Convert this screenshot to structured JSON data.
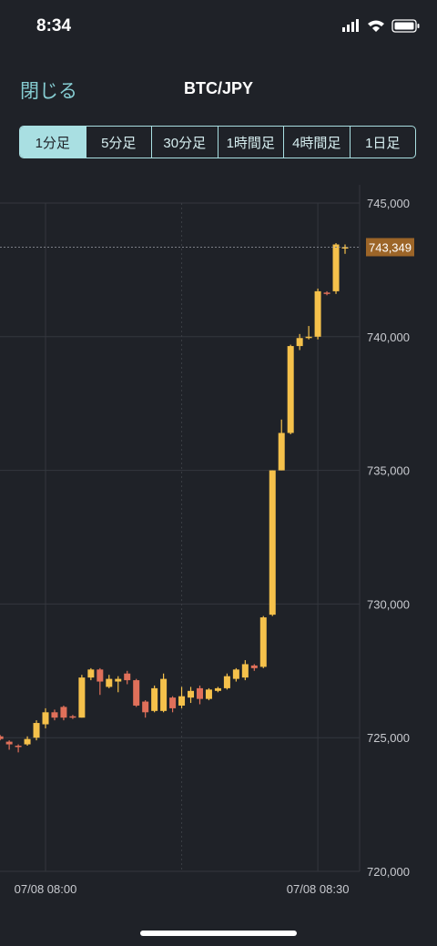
{
  "status_bar": {
    "time": "8:34"
  },
  "header": {
    "close": "閉じる",
    "title": "BTC/JPY"
  },
  "tabs": [
    "1分足",
    "5分足",
    "30分足",
    "1時間足",
    "4時間足",
    "1日足"
  ],
  "chart_data": {
    "type": "candlestick",
    "categories": [
      null,
      null,
      null,
      null,
      null,
      "07/08 08:00",
      null,
      null,
      null,
      null,
      null,
      null,
      null,
      null,
      null,
      null,
      null,
      null,
      null,
      null,
      null,
      null,
      null,
      null,
      null,
      null,
      null,
      null,
      null,
      null,
      null,
      null,
      null,
      null,
      null,
      "07/08 08:30",
      null,
      null,
      null
    ],
    "open": [
      725050,
      724850,
      724700,
      724750,
      725000,
      725500,
      725950,
      726150,
      725800,
      725750,
      727250,
      727550,
      726900,
      727100,
      727400,
      727150,
      726350,
      726000,
      726000,
      726500,
      726200,
      726500,
      726850,
      726450,
      726750,
      726850,
      727200,
      727250,
      727700,
      727650,
      729600,
      735000,
      736400,
      739650,
      739950,
      740000,
      741650,
      741700,
      743300
    ],
    "high": [
      725100,
      724900,
      724750,
      725050,
      725650,
      726100,
      726050,
      726200,
      725850,
      727350,
      727600,
      727600,
      727350,
      727300,
      727500,
      727200,
      726400,
      726950,
      727400,
      726550,
      726900,
      726900,
      726950,
      726850,
      726900,
      727400,
      727600,
      727900,
      727750,
      729550,
      735000,
      736900,
      739700,
      740100,
      740400,
      741800,
      741700,
      743500,
      743450
    ],
    "low": [
      724900,
      724550,
      724450,
      724700,
      724900,
      725350,
      725650,
      725650,
      725700,
      725750,
      727150,
      726600,
      726850,
      726700,
      727000,
      726150,
      725750,
      725950,
      725950,
      725950,
      726100,
      726300,
      726250,
      726400,
      726700,
      726800,
      727100,
      727150,
      727500,
      727600,
      729550,
      735000,
      736350,
      739500,
      739900,
      739900,
      741550,
      741600,
      743100
    ],
    "close": [
      724950,
      724750,
      724650,
      724950,
      725550,
      725950,
      725750,
      725750,
      725750,
      727250,
      727550,
      727100,
      727200,
      727200,
      727150,
      726200,
      725950,
      726850,
      727200,
      726100,
      726550,
      726750,
      726450,
      726800,
      726850,
      727300,
      727550,
      727750,
      727600,
      729500,
      735000,
      736400,
      739650,
      739950,
      740000,
      741700,
      741600,
      743450,
      743349
    ],
    "up_color": "#f5c14b",
    "down_color": "#e0705a",
    "last": {
      "value": 743349,
      "label": "743,349"
    },
    "ylim": [
      720000,
      745000
    ],
    "yticks": [
      {
        "value": 720000,
        "label": "720,000"
      },
      {
        "value": 725000,
        "label": "725,000"
      },
      {
        "value": 730000,
        "label": "730,000"
      },
      {
        "value": 735000,
        "label": "735,000"
      },
      {
        "value": 740000,
        "label": "740,000"
      },
      {
        "value": 745000,
        "label": "745,000"
      }
    ],
    "grid": true
  }
}
